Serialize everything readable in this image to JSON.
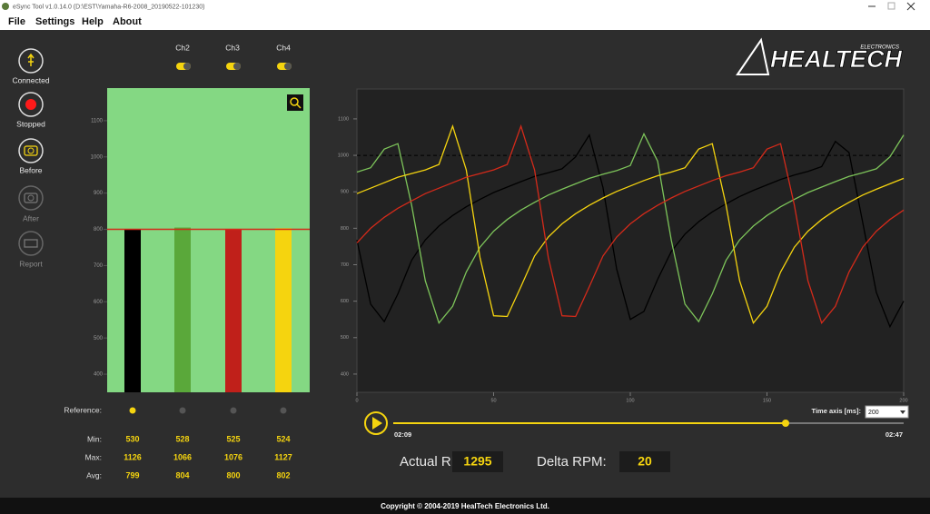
{
  "window": {
    "title": "eSync Tool v1.0.14.0 (D:\\EST\\Yamaha-R6-2008_20190522-101230)"
  },
  "menu": {
    "items": [
      "File",
      "Settings",
      "Help",
      "About"
    ]
  },
  "sidebar": [
    "Connected",
    "Stopped",
    "Before",
    "After",
    "Report"
  ],
  "channels": [
    "Ch2",
    "Ch3",
    "Ch4"
  ],
  "logo": {
    "name": "HEALTECH",
    "sub": "ELECTRONICS"
  },
  "reference_label": "Reference:",
  "stats": {
    "labels": [
      "Min:",
      "Max:",
      "Avg:"
    ],
    "rows": [
      [
        530,
        528,
        525,
        524
      ],
      [
        1126,
        1066,
        1076,
        1127
      ],
      [
        799,
        804,
        800,
        802
      ]
    ]
  },
  "chart_data": [
    {
      "type": "bar",
      "values": [
        800,
        805,
        800,
        803
      ],
      "colors": [
        "#000000",
        "#5aa83a",
        "#c0201a",
        "#f5d40f"
      ],
      "reference": 800,
      "ylim": [
        350,
        1190
      ],
      "yticks": [
        400,
        500,
        600,
        700,
        800,
        900,
        1000,
        1100
      ]
    },
    {
      "type": "line",
      "xlim": [
        0,
        200
      ],
      "xticks": [
        0,
        50,
        100,
        150,
        200
      ],
      "ylim": [
        350,
        1182
      ],
      "yticks": [
        400,
        500,
        600,
        700,
        800,
        900,
        1000,
        1100
      ],
      "reference": 1000,
      "x": [
        0,
        5,
        10,
        15,
        20,
        25,
        30,
        35,
        40,
        45,
        50,
        55,
        60,
        65,
        70,
        75,
        80,
        85,
        90,
        95,
        100,
        105,
        110,
        115,
        120,
        125,
        130,
        135,
        140,
        145,
        150,
        155,
        160,
        165,
        170,
        175,
        180,
        185,
        190,
        195,
        200
      ],
      "series": [
        {
          "color": "#000000",
          "values": [
            768,
            592,
            544,
            620,
            712,
            768,
            806,
            835,
            859,
            879,
            898,
            913,
            928,
            942,
            952,
            963,
            996,
            1056,
            912,
            688,
            550,
            572,
            660,
            736,
            784,
            818,
            845,
            867,
            887,
            904,
            919,
            934,
            946,
            956,
            969,
            1038,
            1008,
            816,
            624,
            530,
            600
          ]
        },
        {
          "color": "#7dc45a",
          "values": [
            954,
            966,
            1017,
            1032,
            864,
            656,
            540,
            586,
            680,
            748,
            792,
            824,
            850,
            871,
            891,
            907,
            922,
            937,
            948,
            958,
            972,
            1059,
            984,
            768,
            592,
            544,
            620,
            712,
            768,
            806,
            835,
            859,
            879,
            898,
            913,
            928,
            942,
            952,
            963,
            996,
            1056
          ]
        },
        {
          "color": "#f5d40f",
          "values": [
            895,
            910,
            925,
            940,
            950,
            960,
            975,
            1080,
            960,
            720,
            560,
            558,
            640,
            724,
            776,
            812,
            840,
            863,
            883,
            901,
            916,
            931,
            944,
            954,
            966,
            1017,
            1032,
            864,
            656,
            540,
            586,
            680,
            748,
            792,
            824,
            850,
            871,
            891,
            907,
            922,
            937
          ]
        },
        {
          "color": "#d42a1a",
          "values": [
            760,
            800,
            830,
            855,
            875,
            895,
            910,
            925,
            940,
            950,
            960,
            975,
            1080,
            960,
            720,
            560,
            558,
            640,
            724,
            776,
            812,
            840,
            863,
            883,
            901,
            916,
            931,
            944,
            954,
            966,
            1017,
            1032,
            864,
            656,
            540,
            586,
            680,
            748,
            792,
            824,
            850
          ]
        }
      ]
    }
  ],
  "playback": {
    "start": "02:09",
    "end": "02:47"
  },
  "time_axis": {
    "label": "Time axis [ms]:",
    "value": 200
  },
  "rpm": {
    "actual_label": "Actual RPM:",
    "actual": 1295,
    "delta_label": "Delta RPM:",
    "delta": 20
  },
  "footer": "Copyright © 2004-2019 HealTech Electronics Ltd."
}
